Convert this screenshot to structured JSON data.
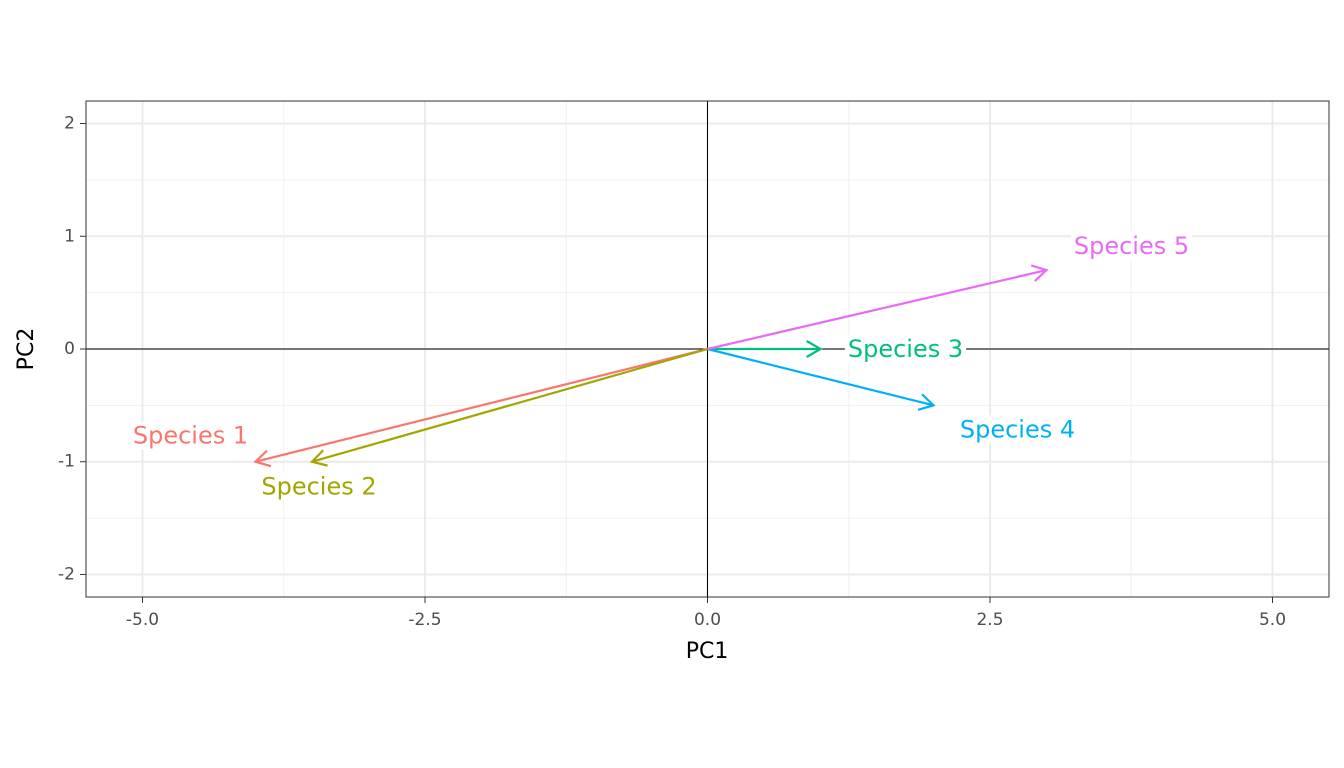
{
  "chart_data": {
    "type": "arrow",
    "x_label": "PC1",
    "y_label": "PC2",
    "series": [
      {
        "name": "Species 1",
        "color": "#F8766D",
        "x": -4,
        "y": -1
      },
      {
        "name": "Species 2",
        "color": "#A3A500",
        "x": -3.5,
        "y": -1
      },
      {
        "name": "Species 3",
        "color": "#00BF7D",
        "x": 1,
        "y": 0
      },
      {
        "name": "Species 4",
        "color": "#00B0F6",
        "x": 2,
        "y": -0.5
      },
      {
        "name": "Species 5",
        "color": "#E76BF3",
        "x": 3,
        "y": 0.7
      }
    ],
    "xlim": [
      -5.5,
      5.5
    ],
    "ylim": [
      -2.2,
      2.2
    ],
    "xticks": [
      {
        "value": -5,
        "label": "-5.0"
      },
      {
        "value": -2.5,
        "label": "-2.5"
      },
      {
        "value": 0,
        "label": "0.0"
      },
      {
        "value": 2.5,
        "label": "2.5"
      },
      {
        "value": 5,
        "label": "5.0"
      }
    ],
    "yticks": [
      -2,
      -1,
      0,
      1,
      2
    ],
    "grid": true
  }
}
